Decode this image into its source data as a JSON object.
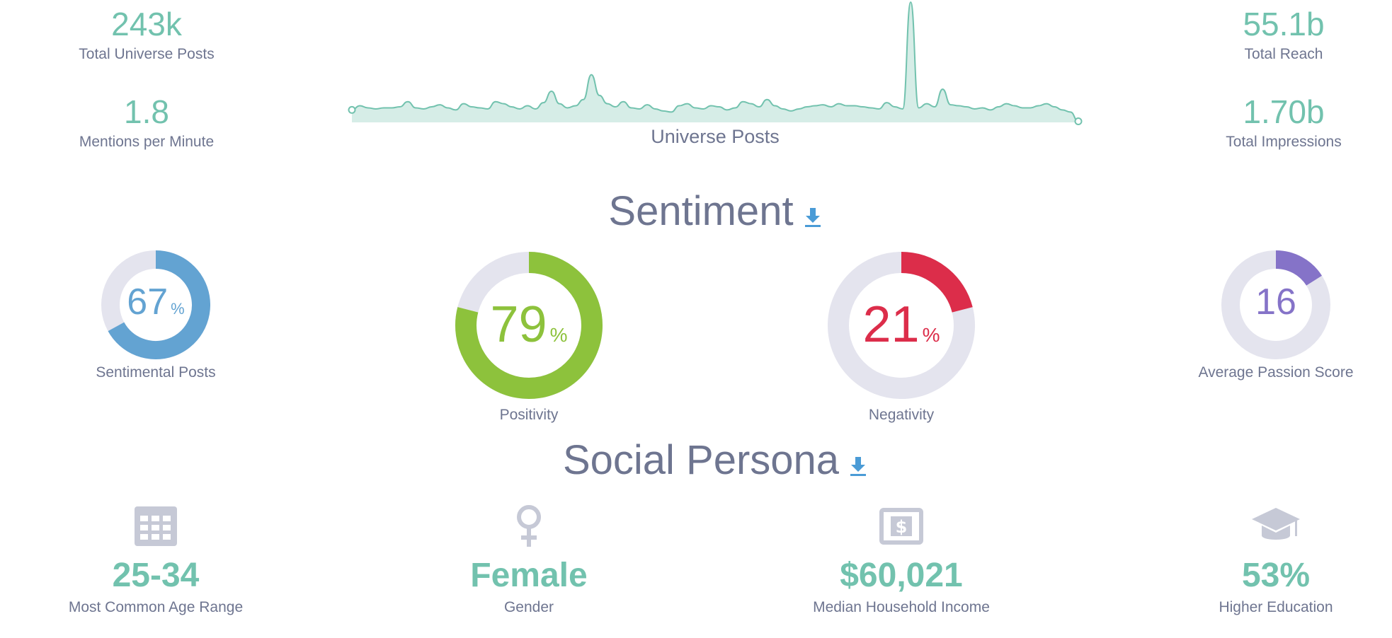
{
  "stats_left": [
    {
      "value": "243k",
      "label": "Total Universe Posts"
    },
    {
      "value": "1.8",
      "label": "Mentions per Minute"
    }
  ],
  "stats_right": [
    {
      "value": "55.1b",
      "label": "Total Reach"
    },
    {
      "value": "1.70b",
      "label": "Total Impressions"
    }
  ],
  "universe_chart": {
    "label": "Universe Posts",
    "series": [
      12,
      16,
      14,
      13,
      14,
      14,
      15,
      20,
      14,
      13,
      15,
      17,
      14,
      12,
      18,
      15,
      14,
      13,
      20,
      18,
      15,
      13,
      16,
      13,
      19,
      30,
      18,
      14,
      16,
      22,
      46,
      26,
      18,
      15,
      20,
      14,
      13,
      17,
      13,
      11,
      10,
      16,
      18,
      14,
      13,
      16,
      15,
      12,
      14,
      20,
      18,
      15,
      22,
      16,
      13,
      11,
      13,
      15,
      16,
      17,
      15,
      18,
      16,
      16,
      15,
      14,
      13,
      19,
      15,
      13,
      116,
      14,
      18,
      15,
      32,
      17,
      16,
      15,
      13,
      14,
      12,
      15,
      18,
      16,
      14,
      14,
      16,
      18,
      15,
      12,
      10,
      1
    ],
    "color": "#72c2ae",
    "fill": "#d6ede7"
  },
  "sentiment": {
    "title": "Sentiment",
    "download_icon": "download-icon",
    "donuts": [
      {
        "value": "67",
        "unit": "%",
        "percent": 67,
        "label": "Sentimental Posts",
        "color": "#63a3d2"
      },
      {
        "value": "79",
        "unit": "%",
        "percent": 79,
        "label": "Positivity",
        "color": "#8dc23c"
      },
      {
        "value": "21",
        "unit": "%",
        "percent": 21,
        "label": "Negativity",
        "color": "#dc2d4a"
      },
      {
        "value": "16",
        "unit": "",
        "percent": 16,
        "label": "Average Passion Score",
        "color": "#8573c8"
      }
    ]
  },
  "persona": {
    "title": "Social Persona",
    "download_icon": "download-icon",
    "items": [
      {
        "value": "25-34",
        "label": "Most Common Age Range",
        "icon": "calendar-grid-icon"
      },
      {
        "value": "Female",
        "label": "Gender",
        "icon": "female-icon"
      },
      {
        "value": "$60,021",
        "label": "Median Household Income",
        "icon": "dollar-bill-icon"
      },
      {
        "value": "53%",
        "label": "Higher Education",
        "icon": "graduation-cap-icon"
      }
    ]
  },
  "colors": {
    "accent": "#72c2ae",
    "muted": "#6e7590",
    "track": "#e4e4ee",
    "icon": "#c6c9d6",
    "link": "#4a9bd6"
  }
}
